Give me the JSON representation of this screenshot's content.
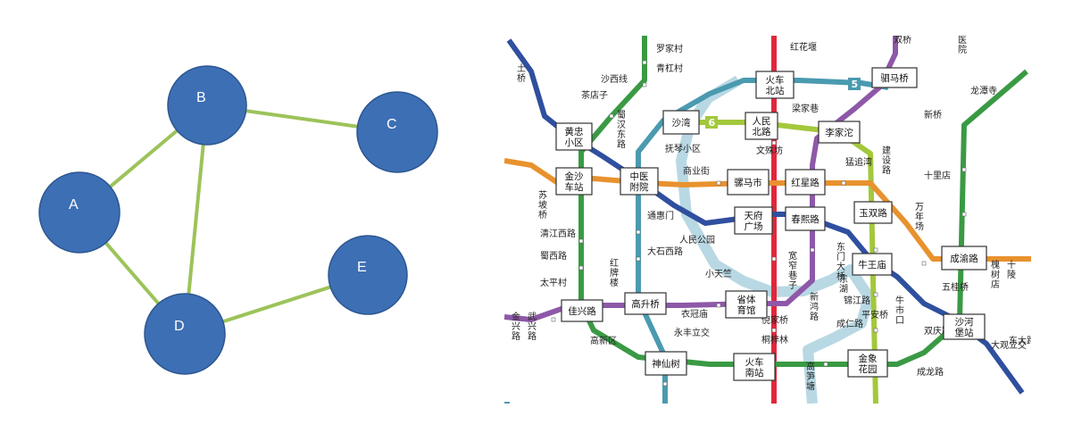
{
  "graph": {
    "nodes": [
      {
        "id": "A",
        "label": "A"
      },
      {
        "id": "B",
        "label": "B"
      },
      {
        "id": "C",
        "label": "C"
      },
      {
        "id": "D",
        "label": "D"
      },
      {
        "id": "E",
        "label": "E"
      }
    ],
    "edges": [
      [
        "A",
        "B"
      ],
      [
        "B",
        "C"
      ],
      [
        "B",
        "D"
      ],
      [
        "A",
        "D"
      ],
      [
        "D",
        "E"
      ]
    ],
    "colors": {
      "node_fill": "#3d6fb5",
      "node_stroke": "#2d5690",
      "edge": "#9cc35a",
      "label": "#ffffff"
    }
  },
  "metro": {
    "line_colors": {
      "line1": "#2f4f9f",
      "line2": "#e0283c",
      "line3": "#8e58a8",
      "line4": "#3a9a44",
      "line5": "#4a9ab0",
      "line6": "#a3c83c",
      "line7": "#e8922e",
      "ring": "#b8d8e4"
    },
    "line_badges": [
      "6",
      "5"
    ],
    "transfer_stations": [
      "火车\n北站",
      "驷马桥",
      "沙湾",
      "人民\n北路",
      "李家沱",
      "黄忠\n小区",
      "金沙\n车站",
      "中医\n附院",
      "骡马市",
      "红星路",
      "玉双路",
      "天府\n广场",
      "春熙路",
      "牛王庙",
      "成渝路",
      "沙河\n堡站",
      "省体\n育馆",
      "高升桥",
      "佳兴路",
      "神仙树",
      "火车\n南站",
      "金象\n花园"
    ],
    "stations": [
      "罗家村",
      "青杠村",
      "沙西线",
      "茶店子",
      "红花堰",
      "梁家巷",
      "文殊坊",
      "蜀汉\n东路",
      "抚琴小区",
      "商业街",
      "双桥",
      "医院",
      "龙潭寺",
      "新桥",
      "十里店",
      "建设路",
      "猛追湾",
      "东门大桥",
      "新鸿路",
      "大石西路",
      "通惠门",
      "人民公园",
      "宽窄巷子",
      "苏坡桥",
      "清江西路",
      "蜀西路",
      "太平村",
      "土桥",
      "万年场",
      "五桂桥",
      "槐树店",
      "十陵",
      "小天竺",
      "衣冠庙",
      "永丰立交",
      "红牌楼",
      "高新区",
      "武兴路",
      "金兴路",
      "倪家桥",
      "桐梓林",
      "高笋塘",
      "东湖",
      "成仁路",
      "牛市口",
      "双庆路",
      "成龙路",
      "东大路",
      "大观立交",
      "锦江路",
      "平安桥"
    ]
  }
}
